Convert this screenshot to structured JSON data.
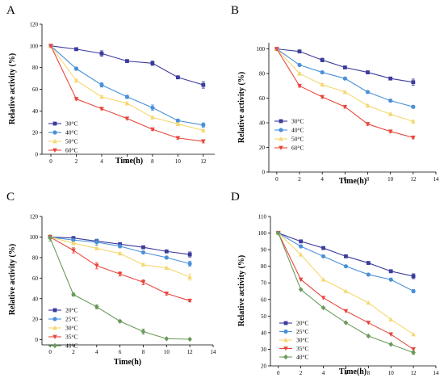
{
  "chart_data": [
    {
      "type": "line",
      "panel": "A",
      "xlabel": "Time(h)",
      "ylabel": "Relative activity (%)",
      "x_ticks": [
        0,
        2,
        4,
        6,
        8,
        10,
        12
      ],
      "y_ticks": [
        0,
        20,
        40,
        60,
        80,
        100,
        120
      ],
      "xlim": [
        -0.7,
        12.9
      ],
      "ylim": [
        0,
        120
      ],
      "x": [
        0,
        2,
        4,
        6,
        8,
        10,
        12
      ],
      "legend_position": "bottom-left",
      "series": [
        {
          "name": "30°C",
          "color": "#3b3b9e",
          "marker": "square",
          "values": [
            100,
            97,
            93,
            86,
            84,
            71,
            64
          ],
          "errors": [
            1,
            1,
            2.5,
            1,
            2,
            1,
            3
          ]
        },
        {
          "name": "40°C",
          "color": "#4a90d9",
          "marker": "circle",
          "values": [
            100,
            79,
            64,
            53,
            43,
            31,
            27
          ],
          "errors": [
            1,
            1.5,
            2,
            1.5,
            2.5,
            1.5,
            2
          ]
        },
        {
          "name": "50°C",
          "color": "#f5d76e",
          "marker": "triangle",
          "values": [
            100,
            68,
            53,
            47,
            34,
            28,
            22
          ],
          "errors": [
            1,
            1,
            1,
            1,
            1,
            1,
            1
          ]
        },
        {
          "name": "60°C",
          "color": "#e8473c",
          "marker": "triangle-down",
          "values": [
            100,
            51,
            42,
            33,
            23,
            15,
            12
          ],
          "errors": [
            1,
            1,
            1,
            1,
            1,
            1,
            1.5
          ]
        }
      ]
    },
    {
      "type": "line",
      "panel": "B",
      "xlabel": "Time(h)",
      "ylabel": "Relative activity (%)",
      "x_ticks": [
        0,
        2,
        4,
        6,
        8,
        10,
        12,
        14
      ],
      "y_ticks": [
        0,
        20,
        40,
        60,
        80,
        100
      ],
      "xlim": [
        -0.7,
        14
      ],
      "ylim": [
        0,
        105
      ],
      "x": [
        0,
        2,
        4,
        6,
        8,
        10,
        12
      ],
      "legend_position": "bottom-left",
      "series": [
        {
          "name": "30°C",
          "color": "#3b3b9e",
          "marker": "square",
          "values": [
            100,
            98,
            91,
            85,
            81,
            76,
            73
          ],
          "errors": [
            1,
            1,
            1.5,
            1,
            1,
            1,
            2.5
          ]
        },
        {
          "name": "40°C",
          "color": "#4a90d9",
          "marker": "circle",
          "values": [
            100,
            87,
            81,
            76,
            65,
            58,
            53
          ],
          "errors": [
            1,
            1,
            1,
            1,
            1,
            1,
            1
          ]
        },
        {
          "name": "50°C",
          "color": "#f5d76e",
          "marker": "triangle",
          "values": [
            100,
            80,
            71,
            65,
            54,
            47,
            41
          ],
          "errors": [
            1,
            1,
            1,
            1,
            1,
            1,
            1
          ]
        },
        {
          "name": "60°C",
          "color": "#e8473c",
          "marker": "triangle-down",
          "values": [
            100,
            70,
            61,
            53,
            39,
            33,
            28
          ],
          "errors": [
            1,
            1,
            1,
            1,
            1,
            1,
            1
          ]
        }
      ]
    },
    {
      "type": "line",
      "panel": "C",
      "xlabel": "Time(h)",
      "ylabel": "Relative activity (%)",
      "x_ticks": [
        0,
        2,
        4,
        6,
        8,
        10,
        12,
        14
      ],
      "y_ticks": [
        0,
        20,
        40,
        60,
        80,
        100,
        120
      ],
      "xlim": [
        -0.7,
        14
      ],
      "ylim": [
        -5,
        120
      ],
      "x": [
        0,
        2,
        4,
        6,
        8,
        10,
        12
      ],
      "legend_position": "bottom-left",
      "series": [
        {
          "name": "20°C",
          "color": "#3b3b9e",
          "marker": "square",
          "values": [
            100,
            99,
            96,
            93,
            90,
            86,
            83
          ],
          "errors": [
            1,
            1,
            1,
            1,
            1,
            1,
            2.5
          ]
        },
        {
          "name": "25°C",
          "color": "#4a90d9",
          "marker": "circle",
          "values": [
            100,
            97,
            95,
            91,
            85,
            80,
            74
          ],
          "errors": [
            1,
            1,
            3,
            1.5,
            1,
            1,
            2.5
          ]
        },
        {
          "name": "30°C",
          "color": "#f5d76e",
          "marker": "triangle",
          "values": [
            100,
            94,
            89,
            84,
            73,
            70,
            61
          ],
          "errors": [
            1,
            1,
            1,
            1,
            1,
            1,
            3
          ]
        },
        {
          "name": "35°C",
          "color": "#e8473c",
          "marker": "triangle-down",
          "values": [
            100,
            87,
            72,
            64,
            56,
            45,
            38
          ],
          "errors": [
            1,
            2.5,
            3,
            2,
            2.5,
            1.5,
            1
          ]
        },
        {
          "name": "40°C",
          "color": "#6a9a5a",
          "marker": "diamond",
          "values": [
            99,
            44,
            32,
            18,
            8,
            1,
            0.5
          ],
          "errors": [
            3,
            1.5,
            2,
            1,
            2.5,
            0.5,
            0.5
          ]
        }
      ]
    },
    {
      "type": "line",
      "panel": "D",
      "xlabel": "Time(h)",
      "ylabel": "Relative activity (%)",
      "x_ticks": [
        0,
        2,
        4,
        6,
        8,
        10,
        12,
        14
      ],
      "y_ticks": [
        20,
        30,
        40,
        50,
        60,
        70,
        80,
        90,
        100,
        110
      ],
      "xlim": [
        -0.7,
        14
      ],
      "ylim": [
        20,
        110
      ],
      "x": [
        0,
        2,
        4,
        6,
        8,
        10,
        12
      ],
      "legend_position": "bottom-left",
      "series": [
        {
          "name": "20°C",
          "color": "#3b3b9e",
          "marker": "square",
          "values": [
            100,
            95,
            91,
            86,
            82,
            77,
            74
          ],
          "errors": [
            0.5,
            0.5,
            0.5,
            0.5,
            0.5,
            0.5,
            1.5
          ]
        },
        {
          "name": "25°C",
          "color": "#4a90d9",
          "marker": "circle",
          "values": [
            100,
            92,
            86,
            80,
            75,
            72,
            65
          ],
          "errors": [
            0.5,
            0.5,
            0.5,
            0.5,
            0.5,
            0.5,
            1
          ]
        },
        {
          "name": "30°C",
          "color": "#f5d76e",
          "marker": "triangle",
          "values": [
            100,
            87,
            72,
            65,
            58,
            48,
            39
          ],
          "errors": [
            0.5,
            0.5,
            0.5,
            0.5,
            0.5,
            0.5,
            0.5
          ]
        },
        {
          "name": "35°C",
          "color": "#e8473c",
          "marker": "triangle-down",
          "values": [
            100,
            72,
            61,
            53,
            46,
            39,
            30
          ],
          "errors": [
            0.5,
            0.5,
            0.5,
            0.5,
            0.5,
            0.5,
            0.5
          ]
        },
        {
          "name": "40°C",
          "color": "#6a9a5a",
          "marker": "diamond",
          "values": [
            100,
            66,
            55,
            46,
            38,
            33,
            28
          ],
          "errors": [
            0.5,
            0.5,
            0.5,
            0.5,
            0.5,
            0.5,
            1
          ]
        }
      ]
    }
  ]
}
